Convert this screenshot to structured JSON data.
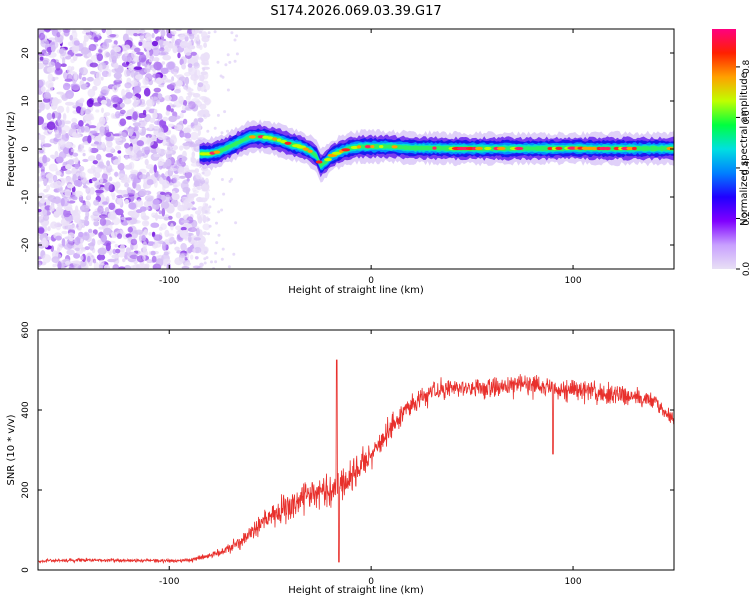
{
  "figure_title": "S174.2026.069.03.39.G17",
  "colors": {
    "background": "#ffffff",
    "axis": "#000000",
    "snr_line": "#e8302c",
    "noise_purple": "#7a1ee0",
    "colorbar_stops": [
      "#e8e0f5",
      "#c8a0ff",
      "#8000ff",
      "#2000ff",
      "#0080ff",
      "#00e0e0",
      "#00ff40",
      "#c0ff00",
      "#ffa000",
      "#ff2000",
      "#ff0080"
    ]
  },
  "chart_data": [
    {
      "type": "heatmap",
      "title": "S174.2026.069.03.39.G17",
      "xlabel": "Height of straight line (km)",
      "ylabel": "Frequency (Hz)",
      "xlim": [
        -165,
        150
      ],
      "ylim": [
        -25,
        25
      ],
      "xticks": [
        -100,
        0,
        100
      ],
      "xtick_labels": [
        "-100",
        "0",
        "100"
      ],
      "yticks": [
        20,
        10,
        0,
        -10,
        -20
      ],
      "ytick_labels": [
        "20",
        "10",
        "0",
        "-10",
        "-20"
      ],
      "noise_region_x": [
        -165,
        -85
      ],
      "ridge": {
        "x": [
          -85,
          -80,
          -75,
          -70,
          -65,
          -60,
          -55,
          -50,
          -45,
          -40,
          -35,
          -30,
          -27,
          -25,
          -22,
          -20,
          -15,
          -10,
          -5,
          0,
          10,
          20,
          30,
          40,
          50,
          60,
          70,
          80,
          90,
          100,
          110,
          120,
          130,
          140,
          150
        ],
        "y": [
          -1,
          -1,
          -0.5,
          0.5,
          1.5,
          2.5,
          2.6,
          2.3,
          1.8,
          1.0,
          0.5,
          -0.5,
          -1.5,
          -3.5,
          -2.5,
          -1.5,
          -0.5,
          0.2,
          0.5,
          0.5,
          0.5,
          0.2,
          0.2,
          0.1,
          0.1,
          0.1,
          0.1,
          0.1,
          0.1,
          0.2,
          0.1,
          0.1,
          0.1,
          0.1,
          0.1
        ]
      },
      "colorbar": {
        "label": "Normalized spectral amplitude",
        "range": [
          0,
          0.95
        ],
        "ticks": [
          0.0,
          0.2,
          0.4,
          0.6,
          0.8
        ],
        "tick_labels": [
          "0.0",
          "0.2",
          "0.4",
          "0.6",
          "0.8"
        ]
      }
    },
    {
      "type": "line",
      "xlabel": "Height of straight line (km)",
      "ylabel": "SNR (10 * v/v)",
      "xlim": [
        -165,
        150
      ],
      "ylim": [
        0,
        600
      ],
      "xticks": [
        -100,
        0,
        100
      ],
      "xtick_labels": [
        "-100",
        "0",
        "100"
      ],
      "yticks": [
        0,
        200,
        400,
        600
      ],
      "ytick_labels": [
        "0",
        "200",
        "400",
        "600"
      ],
      "series": [
        {
          "name": "SNR",
          "x": [
            -165,
            -140,
            -120,
            -100,
            -90,
            -80,
            -75,
            -70,
            -65,
            -60,
            -55,
            -50,
            -45,
            -40,
            -35,
            -30,
            -25,
            -20,
            -18,
            -17,
            -16,
            -15,
            -10,
            -5,
            0,
            5,
            10,
            15,
            20,
            25,
            30,
            40,
            50,
            60,
            70,
            80,
            90,
            95,
            100,
            110,
            120,
            130,
            140,
            145,
            150
          ],
          "values": [
            22,
            25,
            24,
            23,
            25,
            35,
            45,
            55,
            70,
            90,
            110,
            130,
            150,
            165,
            175,
            190,
            195,
            200,
            215,
            230,
            225,
            210,
            230,
            260,
            290,
            320,
            355,
            390,
            415,
            430,
            440,
            455,
            460,
            455,
            465,
            465,
            455,
            445,
            450,
            445,
            440,
            435,
            425,
            400,
            370
          ],
          "spread": [
            8,
            9,
            9,
            8,
            10,
            15,
            20,
            25,
            35,
            45,
            60,
            70,
            80,
            85,
            85,
            85,
            85,
            80,
            80,
            80,
            80,
            80,
            75,
            75,
            70,
            65,
            60,
            55,
            55,
            55,
            55,
            55,
            55,
            55,
            55,
            55,
            55,
            55,
            55,
            55,
            55,
            50,
            45,
            45,
            40
          ]
        }
      ],
      "spikes": [
        {
          "x": -17,
          "value": 525
        },
        {
          "x": -16,
          "value": 20
        },
        {
          "x": 90,
          "value": 290
        }
      ]
    }
  ]
}
